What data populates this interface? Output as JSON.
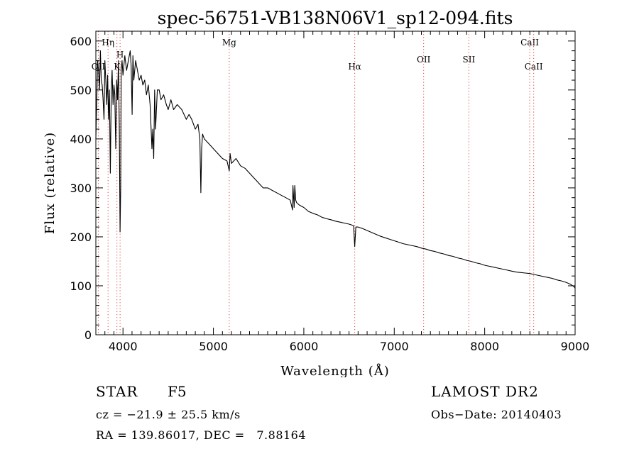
{
  "chart_data": {
    "type": "line",
    "title": "spec-56751-VB138N06V1_sp12-094.fits",
    "xlabel": "Wavelength (Å)",
    "ylabel": "Flux (relative)",
    "xlim": [
      3700,
      9000
    ],
    "ylim": [
      0,
      620
    ],
    "xticks": [
      4000,
      5000,
      6000,
      7000,
      8000,
      9000
    ],
    "yticks": [
      0,
      100,
      200,
      300,
      400,
      500,
      600
    ],
    "grid": false,
    "series": [
      {
        "name": "flux",
        "color": "#000000",
        "x": [
          3700,
          3710,
          3720,
          3730,
          3740,
          3750,
          3760,
          3770,
          3780,
          3790,
          3800,
          3810,
          3820,
          3830,
          3840,
          3850,
          3860,
          3870,
          3880,
          3890,
          3900,
          3910,
          3920,
          3930,
          3940,
          3950,
          3960,
          3968,
          3975,
          3980,
          3990,
          4000,
          4020,
          4040,
          4060,
          4080,
          4090,
          4101,
          4110,
          4120,
          4140,
          4160,
          4180,
          4200,
          4220,
          4240,
          4260,
          4280,
          4300,
          4320,
          4330,
          4340,
          4350,
          4360,
          4380,
          4400,
          4420,
          4450,
          4480,
          4500,
          4530,
          4560,
          4600,
          4650,
          4700,
          4730,
          4760,
          4800,
          4830,
          4850,
          4861,
          4870,
          4880,
          4900,
          4950,
          5000,
          5050,
          5100,
          5150,
          5175,
          5185,
          5200,
          5250,
          5300,
          5350,
          5400,
          5450,
          5500,
          5550,
          5600,
          5650,
          5700,
          5750,
          5800,
          5850,
          5875,
          5880,
          5893,
          5900,
          5910,
          5920,
          5950,
          6000,
          6050,
          6100,
          6150,
          6200,
          6250,
          6300,
          6350,
          6400,
          6450,
          6500,
          6550,
          6563,
          6575,
          6600,
          6650,
          6700,
          6750,
          6800,
          6850,
          6900,
          6950,
          7000,
          7050,
          7100,
          7150,
          7200,
          7250,
          7300,
          7350,
          7400,
          7450,
          7500,
          7550,
          7600,
          7650,
          7700,
          7750,
          7800,
          7850,
          7900,
          7950,
          8000,
          8050,
          8100,
          8150,
          8200,
          8250,
          8300,
          8350,
          8400,
          8450,
          8500,
          8550,
          8600,
          8650,
          8700,
          8750,
          8800,
          8850,
          8900,
          8950,
          8990,
          9000
        ],
        "values": [
          400,
          480,
          560,
          540,
          500,
          580,
          520,
          510,
          480,
          440,
          560,
          520,
          470,
          530,
          440,
          500,
          330,
          500,
          540,
          470,
          510,
          490,
          380,
          520,
          480,
          560,
          410,
          210,
          300,
          540,
          560,
          530,
          570,
          540,
          560,
          580,
          550,
          450,
          570,
          520,
          560,
          540,
          520,
          530,
          510,
          520,
          490,
          510,
          470,
          380,
          420,
          360,
          500,
          420,
          500,
          500,
          480,
          490,
          470,
          460,
          480,
          460,
          470,
          460,
          440,
          450,
          440,
          420,
          430,
          400,
          290,
          380,
          410,
          400,
          390,
          380,
          370,
          360,
          355,
          335,
          370,
          350,
          360,
          345,
          340,
          330,
          320,
          310,
          300,
          300,
          295,
          290,
          285,
          280,
          275,
          255,
          305,
          260,
          305,
          275,
          270,
          265,
          260,
          252,
          248,
          245,
          240,
          237,
          235,
          232,
          230,
          228,
          226,
          223,
          180,
          220,
          220,
          217,
          213,
          209,
          205,
          201,
          198,
          195,
          192,
          189,
          186,
          184,
          182,
          180,
          177,
          175,
          172,
          170,
          167,
          165,
          162,
          160,
          157,
          155,
          152,
          150,
          147,
          145,
          142,
          140,
          138,
          136,
          134,
          132,
          130,
          128,
          127,
          126,
          125,
          123,
          121,
          119,
          117,
          115,
          112,
          110,
          107,
          103,
          98,
          95
        ]
      }
    ],
    "lines": [
      {
        "label": "OII",
        "wavelength": 3727,
        "label_row": 2
      },
      {
        "label": "Hη",
        "wavelength": 3835,
        "label_row": 1
      },
      {
        "label": "K",
        "wavelength": 3933,
        "label_row": 2
      },
      {
        "label": "H",
        "wavelength": 3968,
        "label_row": 1.5
      },
      {
        "label": "Mg",
        "wavelength": 5175,
        "label_row": 1
      },
      {
        "label": "Hα",
        "wavelength": 6563,
        "label_row": 2
      },
      {
        "label": "OII",
        "wavelength": 7325,
        "label_row": 1.7
      },
      {
        "label": "SII",
        "wavelength": 7825,
        "label_row": 1.7
      },
      {
        "label": "CaII",
        "wavelength": 8498,
        "label_row": 1
      },
      {
        "label": "CaII",
        "wavelength": 8542,
        "label_row": 2
      }
    ],
    "marker_color": "#d9453d"
  },
  "info": {
    "object_type": "STAR",
    "spectral_class": "F5",
    "cz": "cz = −21.9 ± 25.5 km/s",
    "radec": "RA = 139.86017, DEC =   7.88164",
    "survey": "LAMOST DR2",
    "obs_date": "Obs−Date: 20140403"
  }
}
